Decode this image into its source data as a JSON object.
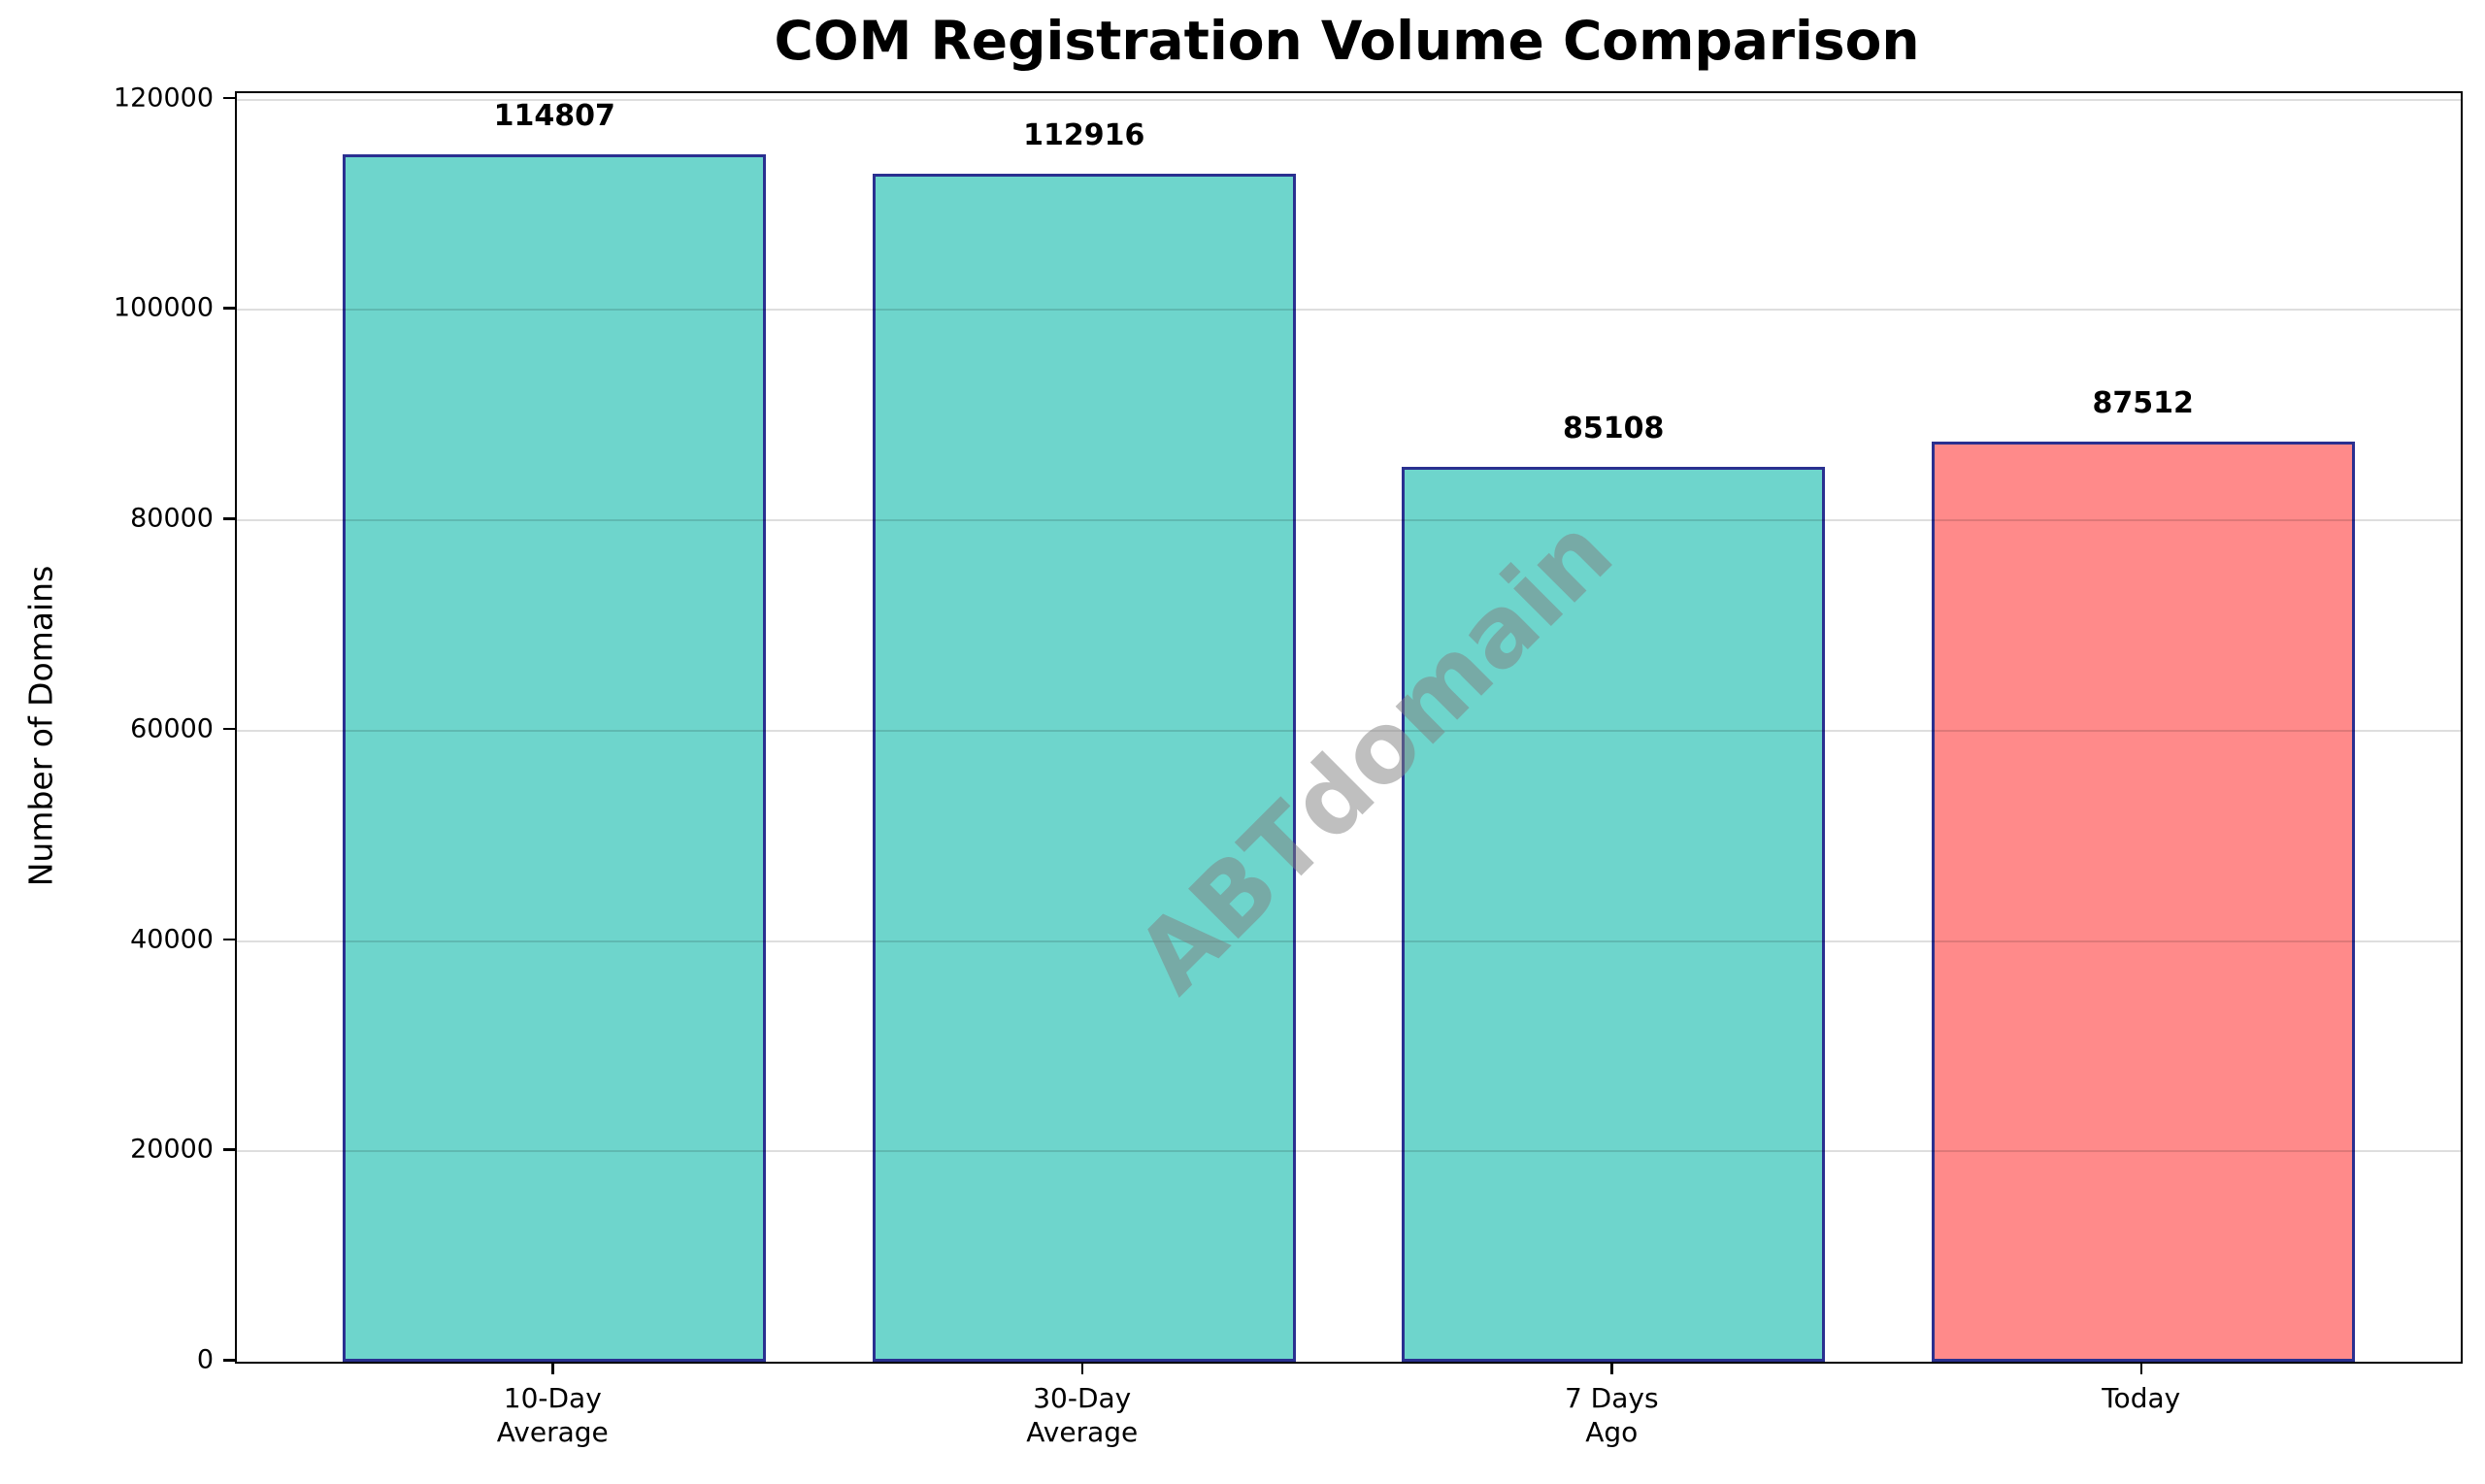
{
  "chart_data": {
    "type": "bar",
    "title": "COM Registration Volume Comparison",
    "xlabel": "",
    "ylabel": "Number of Domains",
    "categories": [
      "10-Day Average",
      "30-Day Average",
      "7 Days Ago",
      "Today"
    ],
    "category_lines": [
      [
        "10-Day",
        "Average"
      ],
      [
        "30-Day",
        "Average"
      ],
      [
        "7 Days",
        "Ago"
      ],
      [
        "Today"
      ]
    ],
    "values": [
      114807,
      112916,
      85108,
      87512
    ],
    "value_labels": [
      "114807",
      "112916",
      "85108",
      "87512"
    ],
    "bar_colors": [
      "#6ED5CC",
      "#6ED5CC",
      "#6ED5CC",
      "#FF8A8A"
    ],
    "bar_edge_color": "#2A3090",
    "ylim": [
      0,
      120600
    ],
    "yticks": [
      0,
      20000,
      40000,
      60000,
      80000,
      100000,
      120000
    ],
    "ytick_labels": [
      "0",
      "20000",
      "40000",
      "60000",
      "80000",
      "100000",
      "120000"
    ],
    "grid": "horizontal",
    "legend": "none",
    "watermark": "ABTdomain",
    "colors": {
      "teal_fill": "#6ED5CC",
      "salmon_fill": "#FF8A8A",
      "edge": "#2A3090",
      "gridline": "#DCDCDC",
      "text": "#000000",
      "background": "#FFFFFF"
    }
  }
}
